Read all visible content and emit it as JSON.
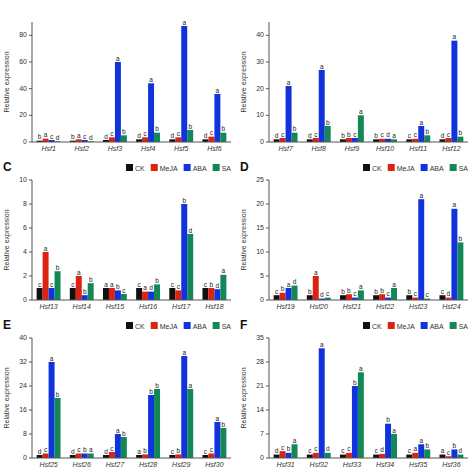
{
  "chart_data": [
    {
      "type": "bar",
      "ylabel": "Relative expression",
      "categories": [
        "Hsf1",
        "Hsf2",
        "Hsf3",
        "Hsf4",
        "Hsf5",
        "Hsf6"
      ],
      "ylim": [
        0,
        90
      ],
      "yticks": [
        0,
        20,
        40,
        60,
        80
      ],
      "grid": false,
      "series": [
        {
          "name": "CK",
          "color": "#111111",
          "values": [
            1.0,
            1.0,
            1.5,
            2.0,
            2.0,
            2.0
          ],
          "annotations": [
            "b",
            "b",
            "d",
            "d",
            "d",
            "d"
          ]
        },
        {
          "name": "MeJA",
          "color": "#dd2211",
          "values": [
            2.5,
            2.0,
            3.5,
            3.5,
            3.5,
            4.0
          ],
          "annotations": [
            "a",
            "a",
            "c",
            "c",
            "c",
            "c"
          ]
        },
        {
          "name": "ABA",
          "color": "#1133dd",
          "values": [
            1.5,
            1.5,
            60.0,
            44.0,
            87.0,
            36.0
          ],
          "annotations": [
            "c",
            "c",
            "a",
            "a",
            "a",
            "a"
          ]
        },
        {
          "name": "SA",
          "color": "#118855",
          "values": [
            0.5,
            0.5,
            5.0,
            7.0,
            9.0,
            7.0
          ],
          "annotations": [
            "d",
            "d",
            "b",
            "b",
            "b",
            "b"
          ]
        }
      ]
    },
    {
      "type": "bar",
      "ylabel": "Relative expression",
      "categories": [
        "Hsf7",
        "Hsf8",
        "Hsf9",
        "Hsf10",
        "Hsf11",
        "Hsf12"
      ],
      "ylim": [
        0,
        45
      ],
      "yticks": [
        0,
        10,
        20,
        30,
        40
      ],
      "grid": false,
      "series": [
        {
          "name": "CK",
          "color": "#111111",
          "values": [
            1.0,
            1.0,
            1.0,
            1.0,
            1.0,
            1.0
          ],
          "annotations": [
            "d",
            "d",
            "b",
            "b",
            "c",
            "d"
          ]
        },
        {
          "name": "MeJA",
          "color": "#dd2211",
          "values": [
            1.5,
            1.5,
            1.5,
            1.2,
            1.2,
            1.5
          ],
          "annotations": [
            "c",
            "c",
            "b",
            "c",
            "c",
            "c"
          ]
        },
        {
          "name": "ABA",
          "color": "#1133dd",
          "values": [
            21.0,
            27.0,
            1.5,
            1.2,
            6.0,
            38.0
          ],
          "annotations": [
            "a",
            "a",
            "c",
            "d",
            "a",
            "a"
          ]
        },
        {
          "name": "SA",
          "color": "#118855",
          "values": [
            3.5,
            6.0,
            10.0,
            1.0,
            2.5,
            2.0
          ],
          "annotations": [
            "b",
            "b",
            "a",
            "a",
            "b",
            "b"
          ]
        }
      ]
    },
    {
      "type": "bar",
      "title": "C",
      "ylabel": "Relative expression",
      "legend": "upper right",
      "categories": [
        "Hsf13",
        "Hsf14",
        "Hsf15",
        "Hsf16",
        "Hsf17",
        "Hsf18"
      ],
      "ylim": [
        0,
        10
      ],
      "yticks": [
        0,
        2,
        4,
        6,
        8,
        10
      ],
      "grid": false,
      "series": [
        {
          "name": "CK",
          "color": "#111111",
          "values": [
            1.0,
            1.0,
            1.0,
            1.0,
            1.0,
            1.0
          ],
          "annotations": [
            "c",
            "c",
            "a",
            "c",
            "c",
            "c"
          ]
        },
        {
          "name": "MeJA",
          "color": "#dd2211",
          "values": [
            4.0,
            2.0,
            1.0,
            0.7,
            0.8,
            1.0
          ],
          "annotations": [
            "a",
            "a",
            "a",
            "a",
            "c",
            "b"
          ]
        },
        {
          "name": "ABA",
          "color": "#1133dd",
          "values": [
            1.0,
            0.4,
            0.8,
            0.7,
            8.0,
            0.9
          ],
          "annotations": [
            "c",
            "b",
            "b",
            "d",
            "b",
            "d"
          ]
        },
        {
          "name": "SA",
          "color": "#118855",
          "values": [
            2.4,
            1.4,
            0.5,
            1.3,
            5.5,
            2.1
          ],
          "annotations": [
            "b",
            "b",
            "c",
            "b",
            "d",
            "a"
          ]
        }
      ]
    },
    {
      "type": "bar",
      "title": "D",
      "ylabel": "Relative expression",
      "legend": "upper right",
      "categories": [
        "Hsf19",
        "Hsf20",
        "Hsf21",
        "Hsf22",
        "Hsf23",
        "Hsf24"
      ],
      "ylim": [
        0,
        25
      ],
      "yticks": [
        0,
        5,
        10,
        15,
        20,
        25
      ],
      "grid": false,
      "series": [
        {
          "name": "CK",
          "color": "#111111",
          "values": [
            1.0,
            1.0,
            1.0,
            1.0,
            1.0,
            1.0
          ],
          "annotations": [
            "c",
            "b",
            "b",
            "b",
            "b",
            "c"
          ]
        },
        {
          "name": "MeJA",
          "color": "#dd2211",
          "values": [
            1.5,
            5.0,
            1.2,
            1.2,
            0.5,
            0.5
          ],
          "annotations": [
            "b",
            "a",
            "b",
            "b",
            "c",
            "d"
          ]
        },
        {
          "name": "ABA",
          "color": "#1133dd",
          "values": [
            2.5,
            0.3,
            0.5,
            0.5,
            21.0,
            19.0
          ],
          "annotations": [
            "a",
            "d",
            "c",
            "c",
            "a",
            "a"
          ]
        },
        {
          "name": "SA",
          "color": "#118855",
          "values": [
            3.0,
            0.5,
            2.0,
            2.5,
            0.3,
            12.0
          ],
          "annotations": [
            "d",
            "c",
            "a",
            "a",
            "c",
            "b"
          ]
        }
      ]
    },
    {
      "type": "bar",
      "title": "E",
      "ylabel": "Relative expression",
      "legend": "upper right",
      "categories": [
        "Hsf25",
        "Hsf26",
        "Hsf27",
        "Hsf28",
        "Hsf29",
        "Hsf30"
      ],
      "ylim": [
        0,
        40
      ],
      "yticks": [
        0,
        8,
        16,
        24,
        32,
        40
      ],
      "grid": false,
      "series": [
        {
          "name": "CK",
          "color": "#111111",
          "values": [
            1.0,
            1.0,
            1.0,
            1.0,
            1.0,
            1.0
          ],
          "annotations": [
            "d",
            "d",
            "d",
            "a",
            "c",
            "c"
          ]
        },
        {
          "name": "MeJA",
          "color": "#dd2211",
          "values": [
            1.5,
            1.5,
            2.0,
            1.2,
            1.2,
            1.5
          ],
          "annotations": [
            "c",
            "c",
            "c",
            "b",
            "b",
            "c"
          ]
        },
        {
          "name": "ABA",
          "color": "#1133dd",
          "values": [
            32.0,
            1.5,
            8.0,
            21.0,
            34.0,
            12.0
          ],
          "annotations": [
            "a",
            "b",
            "a",
            "b",
            "a",
            "a"
          ]
        },
        {
          "name": "SA",
          "color": "#118855",
          "values": [
            20.0,
            1.5,
            7.0,
            23.0,
            23.0,
            10.0
          ],
          "annotations": [
            "b",
            "a",
            "b",
            "b",
            "a",
            "b"
          ]
        }
      ]
    },
    {
      "type": "bar",
      "title": "F",
      "ylabel": "Relative expression",
      "legend": "upper right",
      "categories": [
        "Hsf31",
        "Hsf32",
        "Hsf33",
        "Hsf34",
        "Hsf35",
        "Hsf36"
      ],
      "ylim": [
        0,
        35
      ],
      "yticks": [
        0,
        7,
        14,
        21,
        28,
        35
      ],
      "grid": false,
      "series": [
        {
          "name": "CK",
          "color": "#111111",
          "values": [
            1.0,
            1.0,
            1.0,
            1.0,
            1.0,
            1.0
          ],
          "annotations": [
            "d",
            "c",
            "c",
            "c",
            "c",
            "a"
          ]
        },
        {
          "name": "MeJA",
          "color": "#dd2211",
          "values": [
            2.0,
            1.5,
            1.5,
            1.2,
            1.5,
            0.5
          ],
          "annotations": [
            "c",
            "c",
            "c",
            "d",
            "a",
            "c"
          ]
        },
        {
          "name": "ABA",
          "color": "#1133dd",
          "values": [
            1.5,
            32.0,
            21.0,
            10.0,
            4.0,
            2.5
          ],
          "annotations": [
            "b",
            "a",
            "b",
            "b",
            "a",
            "b"
          ]
        },
        {
          "name": "SA",
          "color": "#118855",
          "values": [
            4.0,
            1.5,
            25.0,
            7.0,
            2.5,
            1.0
          ],
          "annotations": [
            "a",
            "d",
            "a",
            "a",
            "b",
            "d"
          ]
        }
      ]
    }
  ]
}
